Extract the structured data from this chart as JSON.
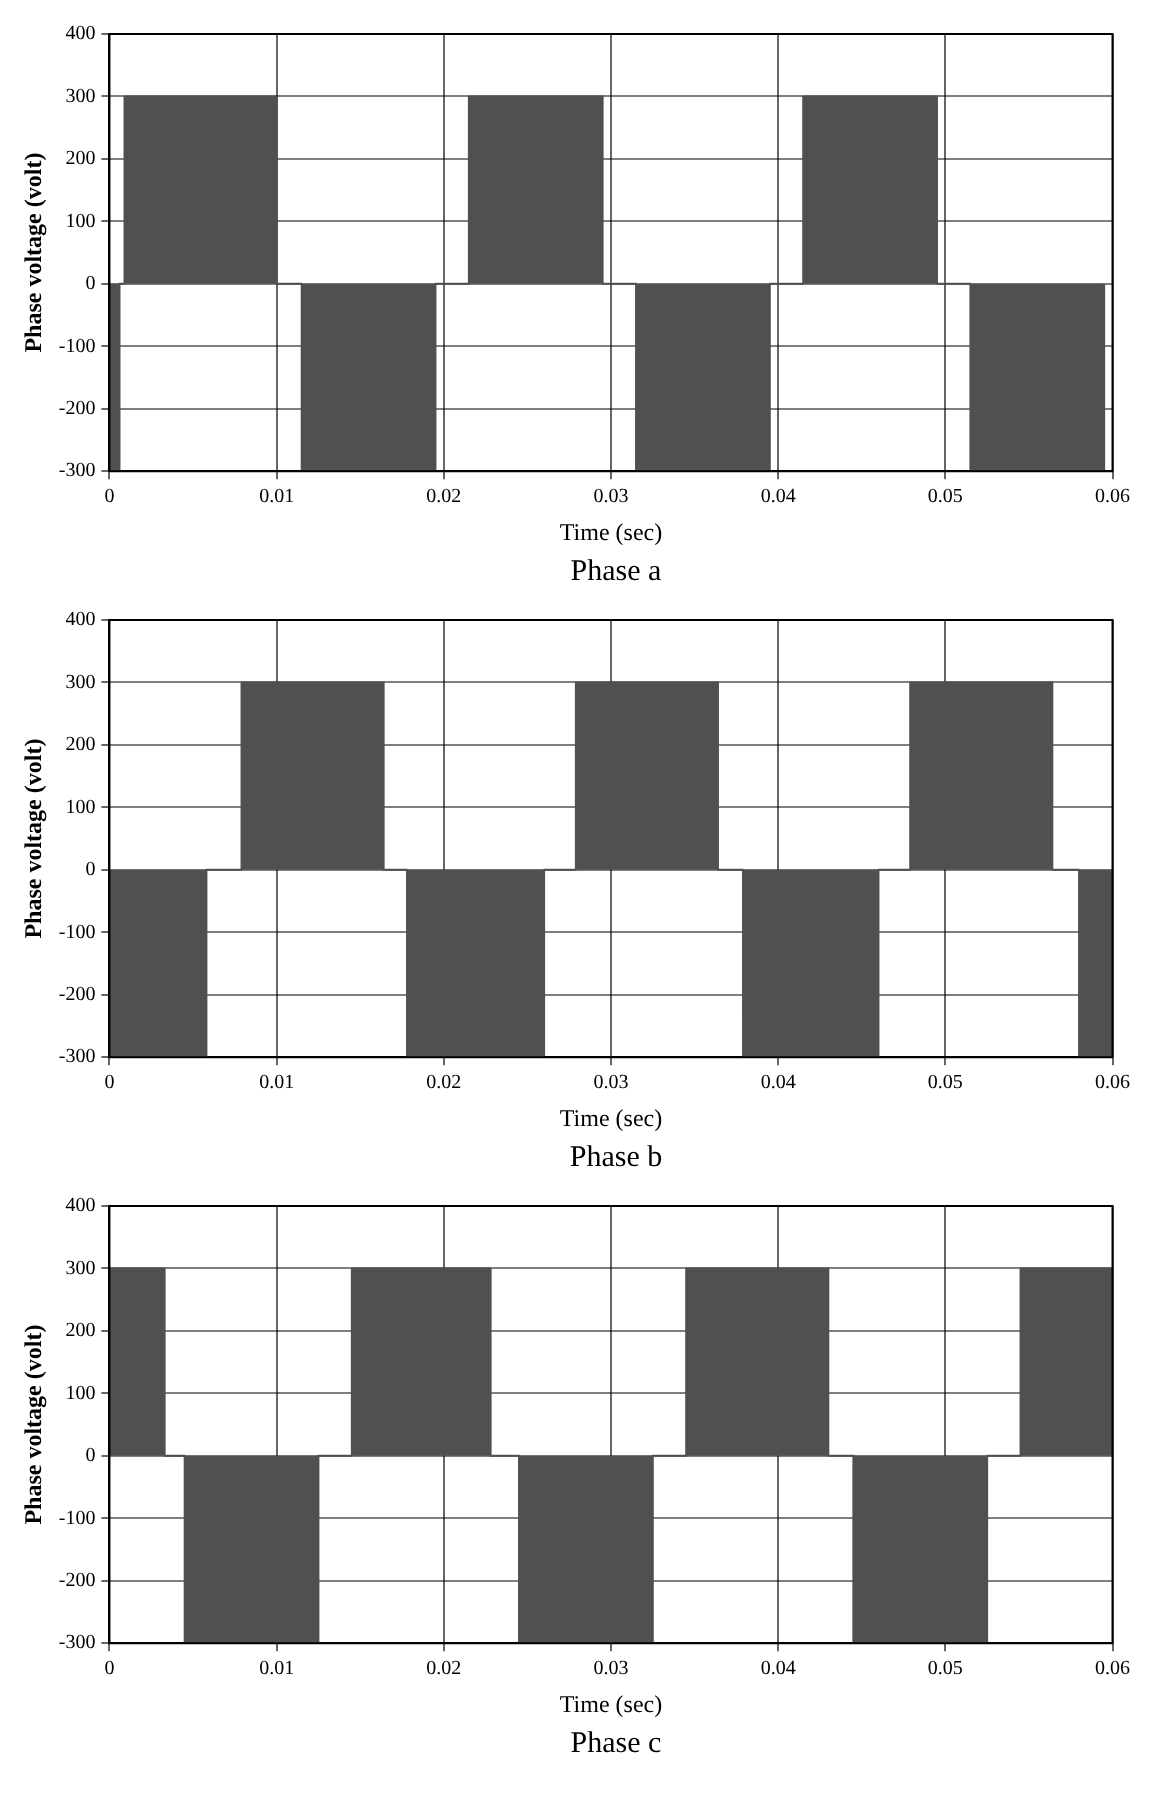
{
  "chart_data": [
    {
      "type": "area",
      "xlabel": "Time (sec)",
      "ylabel": "Phase voltage (volt)",
      "annotations": [
        "Phase a"
      ],
      "series": [
        {
          "color": "#505050",
          "x": [
            0,
            0,
            0.0006,
            0.0006,
            0.0009,
            0.0009,
            0.01,
            0.01,
            0.0115,
            0.0115,
            0.0195,
            0.0195,
            0.0215,
            0.0215,
            0.0295,
            0.0295,
            0.0315,
            0.0315,
            0.0395,
            0.0395,
            0.0415,
            0.0415,
            0.0495,
            0.0495,
            0.0515,
            0.0515,
            0.0595,
            0.0595
          ],
          "values": [
            0,
            -300,
            -300,
            0,
            0,
            300,
            300,
            0,
            0,
            -300,
            -300,
            0,
            0,
            300,
            300,
            0,
            0,
            -300,
            -300,
            0,
            0,
            300,
            300,
            0,
            0,
            -300,
            -300,
            0
          ]
        }
      ],
      "xlim": [
        0,
        0.06
      ],
      "xticks": [
        0,
        0.01,
        0.02,
        0.03,
        0.04,
        0.05,
        0.06
      ],
      "ylim": [
        -300,
        400
      ],
      "yticks": [
        -300,
        -200,
        -100,
        0,
        100,
        200,
        300,
        400
      ],
      "grid": true
    },
    {
      "type": "area",
      "xlabel": "Time (sec)",
      "ylabel": "Phase voltage (volt)",
      "annotations": [
        "Phase b"
      ],
      "series": [
        {
          "color": "#505050",
          "x": [
            0,
            0,
            0.0058,
            0.0058,
            0.0079,
            0.0079,
            0.0164,
            0.0164,
            0.0178,
            0.0178,
            0.026,
            0.026,
            0.0279,
            0.0279,
            0.0364,
            0.0364,
            0.0379,
            0.0379,
            0.046,
            0.046,
            0.0479,
            0.0479,
            0.0564,
            0.0564,
            0.058,
            0.058,
            0.06,
            0.06
          ],
          "values": [
            0,
            -300,
            -300,
            0,
            0,
            300,
            300,
            0,
            0,
            -300,
            -300,
            0,
            0,
            300,
            300,
            0,
            0,
            -300,
            -300,
            0,
            0,
            300,
            300,
            0,
            0,
            -300,
            -300,
            0
          ]
        }
      ],
      "xlim": [
        0,
        0.06
      ],
      "xticks": [
        0,
        0.01,
        0.02,
        0.03,
        0.04,
        0.05,
        0.06
      ],
      "ylim": [
        -300,
        400
      ],
      "yticks": [
        -300,
        -200,
        -100,
        0,
        100,
        200,
        300,
        400
      ],
      "grid": true
    },
    {
      "type": "area",
      "xlabel": "Time (sec)",
      "ylabel": "Phase voltage (volt)",
      "annotations": [
        "Phase c"
      ],
      "series": [
        {
          "color": "#505050",
          "x": [
            0,
            0,
            0.0033,
            0.0033,
            0.0045,
            0.0045,
            0.0125,
            0.0125,
            0.0145,
            0.0145,
            0.0228,
            0.0228,
            0.0245,
            0.0245,
            0.0325,
            0.0325,
            0.0345,
            0.0345,
            0.043,
            0.043,
            0.0445,
            0.0445,
            0.0525,
            0.0525,
            0.0545,
            0.0545,
            0.06,
            0.06
          ],
          "values": [
            0,
            300,
            300,
            0,
            0,
            -300,
            -300,
            0,
            0,
            300,
            300,
            0,
            0,
            -300,
            -300,
            0,
            0,
            300,
            300,
            0,
            0,
            -300,
            -300,
            0,
            0,
            300,
            300,
            0
          ]
        }
      ],
      "xlim": [
        0,
        0.06
      ],
      "xticks": [
        0,
        0.01,
        0.02,
        0.03,
        0.04,
        0.05,
        0.06
      ],
      "ylim": [
        -300,
        400
      ],
      "yticks": [
        -300,
        -200,
        -100,
        0,
        100,
        200,
        300,
        400
      ],
      "grid": true
    }
  ]
}
